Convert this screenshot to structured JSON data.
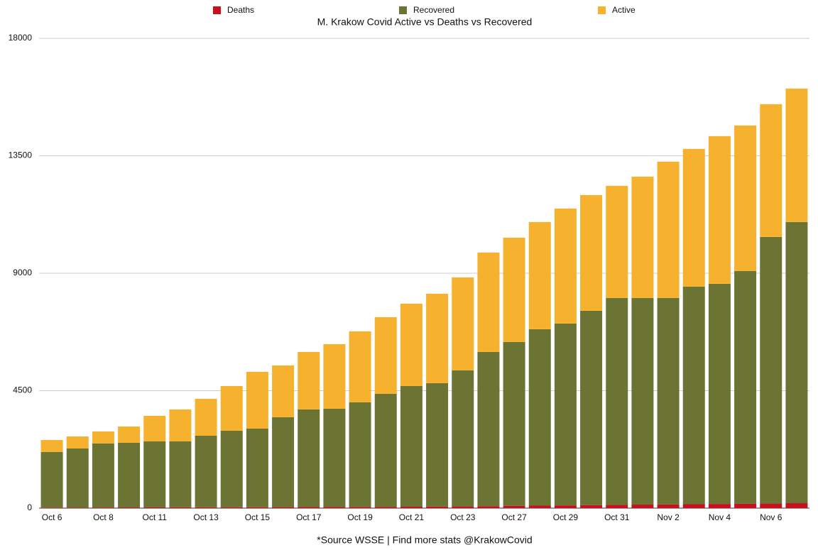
{
  "chart_data": {
    "type": "stacked_bar",
    "title": "M. Krakow Covid Active vs Deaths vs Recovered",
    "footnote": "*Source WSSE | Find more stats @KrakowCovid",
    "categories": [
      "Oct 6",
      null,
      "Oct 8",
      null,
      "Oct 11",
      null,
      "Oct 13",
      null,
      "Oct 15",
      null,
      "Oct 17",
      null,
      "Oct 19",
      null,
      "Oct 21",
      null,
      "Oct 23",
      null,
      "Oct 27",
      null,
      "Oct 29",
      null,
      "Oct 31",
      null,
      "Nov 2",
      null,
      "Nov 4",
      null,
      "Nov 6",
      null
    ],
    "series": [
      {
        "name": "Deaths",
        "color": "#c8101e",
        "values": [
          20,
          22,
          24,
          26,
          28,
          30,
          32,
          34,
          36,
          38,
          40,
          42,
          45,
          50,
          55,
          60,
          65,
          75,
          85,
          95,
          105,
          115,
          125,
          135,
          140,
          150,
          160,
          165,
          175,
          190
        ]
      },
      {
        "name": "Recovered",
        "color": "#6b7433",
        "values": [
          2129,
          2263,
          2451,
          2476,
          2529,
          2527,
          2742,
          2931,
          3010,
          3444,
          3741,
          3766,
          4008,
          4329,
          4623,
          4727,
          5212,
          5909,
          6280,
          6759,
          6967,
          7447,
          7926,
          7916,
          7911,
          8336,
          8435,
          8920,
          10215,
          10772
        ]
      },
      {
        "name": "Active",
        "color": "#f6b22f",
        "values": [
          462,
          462,
          463,
          626,
          979,
          1224,
          1415,
          1713,
          2176,
          1985,
          2203,
          2475,
          2720,
          2938,
          3156,
          3427,
          3563,
          3808,
          3998,
          4108,
          4406,
          4433,
          4298,
          4651,
          5223,
          5277,
          5658,
          5576,
          5087,
          5113
        ]
      }
    ],
    "ylim": [
      0,
      18000
    ],
    "yticks": [
      0,
      4500,
      9000,
      13500,
      18000
    ],
    "grid": true,
    "legend": "top"
  }
}
